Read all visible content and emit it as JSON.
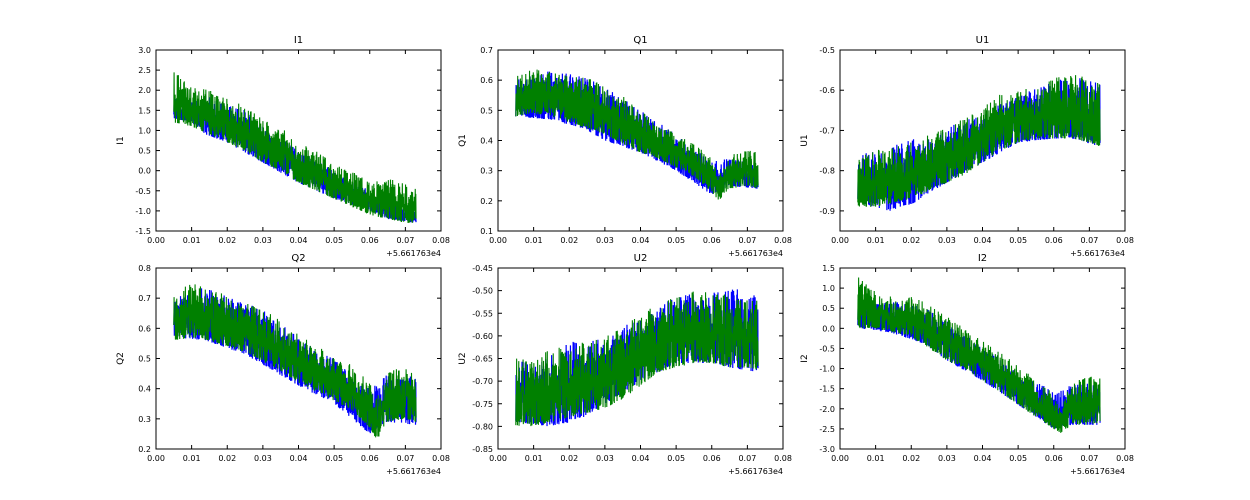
{
  "figure": {
    "background": "#ffffff"
  },
  "colors": {
    "series_blue": "#0000ff",
    "series_green": "#008000",
    "axes": "#000000"
  },
  "chart_data": [
    {
      "type": "line",
      "title": "I1",
      "ylabel": "I1",
      "xlabel": "",
      "x_offset_label": "+5.661763e4",
      "xlim": [
        0.0,
        0.08
      ],
      "ylim": [
        -1.5,
        3.0
      ],
      "xticks": [
        "0.00",
        "0.01",
        "0.02",
        "0.03",
        "0.04",
        "0.05",
        "0.06",
        "0.07",
        "0.08"
      ],
      "yticks": [
        "-1.5",
        "-1.0",
        "-0.5",
        "0.0",
        "0.5",
        "1.0",
        "1.5",
        "2.0",
        "2.5",
        "3.0"
      ],
      "grid": false,
      "legend": "none",
      "series": [
        {
          "color": "#0000ff",
          "x": [
            0.005,
            0.01,
            0.014,
            0.02,
            0.022,
            0.024,
            0.03,
            0.04,
            0.05,
            0.06,
            0.065,
            0.073
          ],
          "y_low": [
            1.3,
            1.2,
            0.9,
            0.7,
            0.6,
            0.5,
            0.2,
            -0.3,
            -0.7,
            -1.0,
            -1.2,
            -1.3
          ],
          "y_high": [
            1.8,
            1.7,
            1.9,
            1.6,
            1.6,
            1.6,
            1.1,
            0.5,
            0.0,
            -0.5,
            -0.7,
            -1.0
          ]
        },
        {
          "color": "#008000",
          "x": [
            0.005,
            0.01,
            0.015,
            0.02,
            0.025,
            0.03,
            0.035,
            0.04,
            0.045,
            0.05,
            0.055,
            0.06,
            0.065,
            0.07,
            0.073
          ],
          "y_low": [
            1.2,
            1.1,
            0.9,
            0.7,
            0.5,
            0.2,
            0.0,
            -0.3,
            -0.5,
            -0.7,
            -0.9,
            -1.1,
            -1.2,
            -1.3,
            -1.3
          ],
          "y_high": [
            2.5,
            2.1,
            2.0,
            1.8,
            1.6,
            1.3,
            1.1,
            0.7,
            0.5,
            0.2,
            0.0,
            -0.3,
            -0.2,
            -0.3,
            -0.3
          ]
        }
      ]
    },
    {
      "type": "line",
      "title": "Q1",
      "ylabel": "Q1",
      "xlabel": "",
      "x_offset_label": "+5.661763e4",
      "xlim": [
        0.0,
        0.08
      ],
      "ylim": [
        0.1,
        0.7
      ],
      "xticks": [
        "0.00",
        "0.01",
        "0.02",
        "0.03",
        "0.04",
        "0.05",
        "0.06",
        "0.07",
        "0.08"
      ],
      "yticks": [
        "0.1",
        "0.2",
        "0.3",
        "0.4",
        "0.5",
        "0.6",
        "0.7"
      ],
      "grid": false,
      "legend": "none",
      "series": [
        {
          "color": "#0000ff",
          "x": [
            0.005,
            0.014,
            0.021,
            0.024,
            0.03,
            0.04,
            0.05,
            0.06,
            0.065,
            0.073
          ],
          "y_low": [
            0.48,
            0.47,
            0.45,
            0.44,
            0.4,
            0.36,
            0.3,
            0.22,
            0.25,
            0.24
          ],
          "y_high": [
            0.6,
            0.63,
            0.62,
            0.61,
            0.58,
            0.5,
            0.42,
            0.33,
            0.34,
            0.33
          ]
        },
        {
          "color": "#008000",
          "x": [
            0.005,
            0.01,
            0.015,
            0.02,
            0.025,
            0.03,
            0.035,
            0.04,
            0.045,
            0.05,
            0.055,
            0.06,
            0.062,
            0.065,
            0.07,
            0.073
          ],
          "y_low": [
            0.48,
            0.49,
            0.48,
            0.46,
            0.44,
            0.42,
            0.39,
            0.36,
            0.34,
            0.31,
            0.28,
            0.23,
            0.2,
            0.24,
            0.25,
            0.24
          ],
          "y_high": [
            0.62,
            0.64,
            0.63,
            0.62,
            0.61,
            0.58,
            0.55,
            0.5,
            0.46,
            0.42,
            0.39,
            0.34,
            0.3,
            0.35,
            0.37,
            0.36
          ]
        }
      ]
    },
    {
      "type": "line",
      "title": "U1",
      "ylabel": "U1",
      "xlabel": "",
      "x_offset_label": "+5.661763e4",
      "xlim": [
        0.0,
        0.08
      ],
      "ylim": [
        -0.95,
        -0.5
      ],
      "xticks": [
        "0.00",
        "0.01",
        "0.02",
        "0.03",
        "0.04",
        "0.05",
        "0.06",
        "0.07",
        "0.08"
      ],
      "yticks": [
        "-0.9",
        "-0.8",
        "-0.7",
        "-0.6",
        "-0.5"
      ],
      "grid": false,
      "legend": "none",
      "series": [
        {
          "color": "#0000ff",
          "x": [
            0.005,
            0.014,
            0.021,
            0.024,
            0.03,
            0.04,
            0.05,
            0.06,
            0.065,
            0.073
          ],
          "y_low": [
            -0.88,
            -0.9,
            -0.88,
            -0.86,
            -0.83,
            -0.78,
            -0.73,
            -0.72,
            -0.72,
            -0.74
          ],
          "y_high": [
            -0.76,
            -0.74,
            -0.72,
            -0.72,
            -0.69,
            -0.66,
            -0.61,
            -0.58,
            -0.56,
            -0.58
          ]
        },
        {
          "color": "#008000",
          "x": [
            0.005,
            0.01,
            0.015,
            0.02,
            0.025,
            0.03,
            0.035,
            0.04,
            0.045,
            0.05,
            0.055,
            0.06,
            0.065,
            0.07,
            0.073
          ],
          "y_low": [
            -0.89,
            -0.89,
            -0.88,
            -0.87,
            -0.85,
            -0.83,
            -0.81,
            -0.78,
            -0.75,
            -0.73,
            -0.72,
            -0.72,
            -0.72,
            -0.73,
            -0.74
          ],
          "y_high": [
            -0.76,
            -0.75,
            -0.74,
            -0.73,
            -0.71,
            -0.69,
            -0.67,
            -0.64,
            -0.61,
            -0.6,
            -0.59,
            -0.57,
            -0.56,
            -0.57,
            -0.58
          ]
        }
      ]
    },
    {
      "type": "line",
      "title": "Q2",
      "ylabel": "Q2",
      "xlabel": "",
      "x_offset_label": "+5.661763e4",
      "xlim": [
        0.0,
        0.08
      ],
      "ylim": [
        0.2,
        0.8
      ],
      "xticks": [
        "0.00",
        "0.01",
        "0.02",
        "0.03",
        "0.04",
        "0.05",
        "0.06",
        "0.07",
        "0.08"
      ],
      "yticks": [
        "0.2",
        "0.3",
        "0.4",
        "0.5",
        "0.6",
        "0.7",
        "0.8"
      ],
      "grid": false,
      "legend": "none",
      "series": [
        {
          "color": "#0000ff",
          "x": [
            0.005,
            0.014,
            0.021,
            0.024,
            0.03,
            0.04,
            0.05,
            0.06,
            0.065,
            0.073
          ],
          "y_low": [
            0.57,
            0.56,
            0.53,
            0.52,
            0.48,
            0.41,
            0.35,
            0.25,
            0.29,
            0.28
          ],
          "y_high": [
            0.7,
            0.74,
            0.7,
            0.69,
            0.66,
            0.57,
            0.5,
            0.4,
            0.45,
            0.44
          ]
        },
        {
          "color": "#008000",
          "x": [
            0.005,
            0.01,
            0.015,
            0.02,
            0.025,
            0.03,
            0.035,
            0.04,
            0.045,
            0.05,
            0.055,
            0.06,
            0.062,
            0.065,
            0.07,
            0.073
          ],
          "y_low": [
            0.56,
            0.57,
            0.56,
            0.54,
            0.52,
            0.49,
            0.46,
            0.42,
            0.39,
            0.36,
            0.33,
            0.27,
            0.23,
            0.29,
            0.3,
            0.29
          ],
          "y_high": [
            0.72,
            0.75,
            0.73,
            0.71,
            0.69,
            0.66,
            0.63,
            0.58,
            0.55,
            0.51,
            0.48,
            0.42,
            0.37,
            0.46,
            0.47,
            0.45
          ]
        }
      ]
    },
    {
      "type": "line",
      "title": "U2",
      "ylabel": "U2",
      "xlabel": "",
      "x_offset_label": "+5.661763e4",
      "xlim": [
        0.0,
        0.08
      ],
      "ylim": [
        -0.85,
        -0.45
      ],
      "xticks": [
        "0.00",
        "0.01",
        "0.02",
        "0.03",
        "0.04",
        "0.05",
        "0.06",
        "0.07",
        "0.08"
      ],
      "yticks": [
        "-0.85",
        "-0.80",
        "-0.75",
        "-0.70",
        "-0.65",
        "-0.60",
        "-0.55",
        "-0.50",
        "-0.45"
      ],
      "grid": false,
      "legend": "none",
      "series": [
        {
          "color": "#0000ff",
          "x": [
            0.005,
            0.014,
            0.021,
            0.024,
            0.03,
            0.04,
            0.05,
            0.06,
            0.065,
            0.073
          ],
          "y_low": [
            -0.79,
            -0.8,
            -0.79,
            -0.78,
            -0.75,
            -0.7,
            -0.66,
            -0.66,
            -0.67,
            -0.68
          ],
          "y_high": [
            -0.66,
            -0.64,
            -0.61,
            -0.62,
            -0.6,
            -0.56,
            -0.51,
            -0.5,
            -0.49,
            -0.51
          ]
        },
        {
          "color": "#008000",
          "x": [
            0.005,
            0.01,
            0.015,
            0.02,
            0.025,
            0.03,
            0.035,
            0.04,
            0.045,
            0.05,
            0.055,
            0.06,
            0.065,
            0.07,
            0.073
          ],
          "y_low": [
            -0.8,
            -0.8,
            -0.79,
            -0.78,
            -0.77,
            -0.76,
            -0.74,
            -0.71,
            -0.68,
            -0.67,
            -0.66,
            -0.66,
            -0.67,
            -0.67,
            -0.68
          ],
          "y_high": [
            -0.65,
            -0.64,
            -0.63,
            -0.62,
            -0.61,
            -0.6,
            -0.58,
            -0.55,
            -0.53,
            -0.51,
            -0.5,
            -0.5,
            -0.51,
            -0.52,
            -0.52
          ]
        }
      ]
    },
    {
      "type": "line",
      "title": "I2",
      "ylabel": "I2",
      "xlabel": "",
      "x_offset_label": "+5.661763e4",
      "xlim": [
        0.0,
        0.08
      ],
      "ylim": [
        -3.0,
        1.5
      ],
      "xticks": [
        "0.00",
        "0.01",
        "0.02",
        "0.03",
        "0.04",
        "0.05",
        "0.06",
        "0.07",
        "0.08"
      ],
      "yticks": [
        "-3.0",
        "-2.5",
        "-2.0",
        "-1.5",
        "-1.0",
        "-0.5",
        "0.0",
        "0.5",
        "1.0",
        "1.5"
      ],
      "grid": false,
      "legend": "none",
      "series": [
        {
          "color": "#0000ff",
          "x": [
            0.005,
            0.014,
            0.021,
            0.024,
            0.03,
            0.04,
            0.05,
            0.06,
            0.065,
            0.073
          ],
          "y_low": [
            0.0,
            -0.1,
            -0.3,
            -0.4,
            -0.8,
            -1.3,
            -1.9,
            -2.5,
            -2.4,
            -2.4
          ],
          "y_high": [
            0.5,
            0.7,
            0.6,
            0.5,
            0.2,
            -0.5,
            -1.0,
            -1.6,
            -1.4,
            -1.3
          ]
        },
        {
          "color": "#008000",
          "x": [
            0.005,
            0.01,
            0.015,
            0.02,
            0.025,
            0.03,
            0.035,
            0.04,
            0.045,
            0.05,
            0.055,
            0.06,
            0.062,
            0.065,
            0.07,
            0.073
          ],
          "y_low": [
            0.0,
            0.0,
            -0.1,
            -0.2,
            -0.5,
            -0.8,
            -1.0,
            -1.3,
            -1.6,
            -1.9,
            -2.2,
            -2.5,
            -2.6,
            -2.4,
            -2.4,
            -2.4
          ],
          "y_high": [
            1.3,
            0.9,
            0.8,
            0.8,
            0.6,
            0.3,
            0.0,
            -0.3,
            -0.6,
            -0.9,
            -1.3,
            -1.6,
            -2.0,
            -1.3,
            -1.2,
            -1.2
          ]
        }
      ]
    }
  ]
}
